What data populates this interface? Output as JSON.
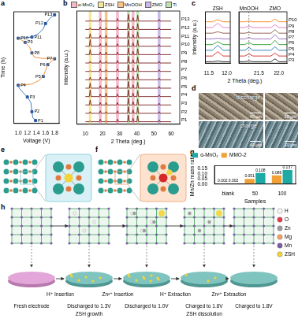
{
  "panel_labels": [
    "a",
    "b",
    "c",
    "d",
    "e",
    "f",
    "g",
    "h"
  ],
  "chart_data": [
    {
      "type": "line",
      "xlabel": "Voltage (V)",
      "ylabel": "Time (h)",
      "xlim": [
        0.9,
        1.9
      ],
      "xticks": [
        {
          "value": 1,
          "label": "1.0"
        },
        1.2,
        1.4,
        1.6,
        1.8
      ],
      "ylim": [
        -0.5,
        18.5
      ],
      "tick_labels": "x",
      "grid": false,
      "marker": "square",
      "series": [
        {
          "color": "#2e6fb7",
          "x": [
            1.38,
            1.32,
            1.3,
            1.28,
            1.2,
            1.1,
            1.02,
            1.0
          ],
          "values": [
            0,
            0.5,
            1.5,
            3,
            4,
            4.8,
            5.5,
            6
          ]
        },
        {
          "color": "#e8862a",
          "x": [
            1.0,
            1.3,
            1.45,
            1.55,
            1.6,
            1.65,
            1.75,
            1.8,
            1.5,
            1.35,
            1.3,
            1.25,
            1.15,
            1.05,
            1.0
          ],
          "values": [
            6,
            6.2,
            6.8,
            7.5,
            8.5,
            9.5,
            10.2,
            10.5,
            10.6,
            10.8,
            11.5,
            12.5,
            13.3,
            13.8,
            14
          ]
        },
        {
          "color": "#2e6fb7",
          "x": [
            1.0,
            1.3,
            1.45,
            1.55,
            1.6,
            1.7,
            1.8
          ],
          "values": [
            14,
            14.2,
            14.8,
            15.6,
            16.5,
            17.4,
            18
          ]
        }
      ],
      "points": {
        "color": "#1f4e9c",
        "labels": [
          "P1",
          "P2",
          "P3",
          "P4",
          "P5",
          "P6",
          "P7",
          "P8",
          "P9",
          "P10",
          "P11",
          "P12",
          "P13"
        ],
        "x": [
          1.38,
          1.3,
          1.2,
          1.0,
          1.55,
          1.65,
          1.8,
          1.3,
          1.15,
          1.0,
          1.3,
          1.6,
          1.8
        ],
        "y": [
          0,
          1.5,
          4,
          6,
          7.5,
          9.5,
          10.5,
          11.5,
          13.3,
          14,
          14.2,
          16.5,
          18
        ]
      }
    },
    {
      "type": "line",
      "xlabel": "2 Theta (deg.)",
      "ylabel": "Intensity (a.u.)",
      "xlim": [
        5,
        65
      ],
      "xticks": [
        10,
        20,
        30,
        40,
        50,
        60
      ],
      "ylim": [
        -3,
        132
      ],
      "tick_labels": "x",
      "grid": false,
      "phases": [
        {
          "name": "α-MnO₂",
          "color": "#f6b8c8"
        },
        {
          "name": "ZSH",
          "color": "#f5e79e"
        },
        {
          "name": "MnOOH",
          "color": "#f8c48a"
        },
        {
          "name": "ZMO",
          "color": "#c9b8e8"
        },
        {
          "name": "Ti",
          "color": "#bfe3b0"
        }
      ],
      "bands": [
        {
          "phase": "ZSH",
          "xmin": 12.0,
          "xmax": 13.6
        },
        {
          "phase": "α-MnO₂",
          "xmin": 17.9,
          "xmax": 19.5
        },
        {
          "phase": "MnOOH",
          "xmin": 21.3,
          "xmax": 22.9
        },
        {
          "phase": "α-MnO₂",
          "xmin": 27.9,
          "xmax": 29.5
        },
        {
          "phase": "Ti",
          "xmin": 34.3,
          "xmax": 35.9
        },
        {
          "phase": "α-MnO₂",
          "xmin": 37.0,
          "xmax": 38.6
        },
        {
          "phase": "Ti",
          "xmin": 39.7,
          "xmax": 41.3
        },
        {
          "phase": "ZMO",
          "xmin": 52.2,
          "xmax": 53.8
        }
      ],
      "x": [
        10,
        12.3,
        12.8,
        13.3,
        18.2,
        18.7,
        19.2,
        21.6,
        22.1,
        22.6,
        28.2,
        28.7,
        29.2,
        34.6,
        35.1,
        35.6,
        37.3,
        37.8,
        38.3,
        40,
        40.5,
        41,
        52.5,
        53,
        53.5,
        60
      ],
      "series": [
        {
          "name": "P1",
          "color": "#7b1f1f",
          "values": [
            0,
            0,
            1,
            0,
            0,
            3,
            0,
            0,
            1,
            0,
            0,
            3,
            0,
            0,
            8,
            0,
            0,
            4,
            0,
            0,
            7,
            0,
            0,
            2,
            0,
            0
          ]
        },
        {
          "name": "P2",
          "color": "#7b1f1f",
          "values": [
            10,
            10,
            12,
            10,
            10,
            13,
            10,
            10,
            12,
            10,
            10,
            13,
            10,
            10,
            18,
            10,
            10,
            14,
            10,
            10,
            17,
            10,
            10,
            12,
            10,
            10
          ]
        },
        {
          "name": "P3",
          "color": "#7b1f1f",
          "values": [
            20,
            20,
            26,
            20,
            20,
            23,
            20,
            20,
            23,
            20,
            20,
            23,
            20,
            20,
            28,
            20,
            20,
            24,
            20,
            20,
            27,
            20,
            20,
            22,
            20,
            20
          ]
        },
        {
          "name": "P4",
          "color": "#7b1f1f",
          "values": [
            30,
            30,
            38,
            30,
            30,
            33,
            30,
            30,
            34,
            30,
            30,
            33,
            30,
            30,
            38,
            30,
            30,
            34,
            30,
            30,
            37,
            30,
            30,
            32,
            30,
            30
          ]
        },
        {
          "name": "P5",
          "color": "#7b1f1f",
          "values": [
            40,
            40,
            46,
            40,
            40,
            43,
            40,
            40,
            44,
            40,
            40,
            43,
            40,
            40,
            48,
            40,
            40,
            44,
            40,
            40,
            47,
            40,
            40,
            42,
            40,
            40
          ]
        },
        {
          "name": "P6",
          "color": "#7b1f1f",
          "values": [
            50,
            50,
            53,
            50,
            50,
            53,
            50,
            50,
            53,
            50,
            50,
            53,
            50,
            50,
            58,
            50,
            50,
            54,
            50,
            50,
            57,
            50,
            50,
            52,
            50,
            50
          ]
        },
        {
          "name": "P7",
          "color": "#7b1f1f",
          "values": [
            60,
            60,
            61,
            60,
            60,
            63,
            60,
            60,
            62,
            60,
            60,
            63,
            60,
            60,
            68,
            60,
            60,
            64,
            60,
            60,
            67,
            60,
            60,
            62,
            60,
            60
          ]
        },
        {
          "name": "P8",
          "color": "#7b1f1f",
          "values": [
            70,
            70,
            72,
            70,
            70,
            73,
            70,
            70,
            72,
            70,
            70,
            73,
            70,
            70,
            78,
            70,
            70,
            74,
            70,
            70,
            77,
            70,
            70,
            72,
            70,
            70
          ]
        },
        {
          "name": "P9",
          "color": "#7b1f1f",
          "values": [
            80,
            80,
            86,
            80,
            80,
            83,
            80,
            80,
            83,
            80,
            80,
            83,
            80,
            80,
            88,
            80,
            80,
            84,
            80,
            80,
            87,
            80,
            80,
            82,
            80,
            80
          ]
        },
        {
          "name": "P10",
          "color": "#7b1f1f",
          "values": [
            90,
            90,
            98,
            90,
            90,
            93,
            90,
            90,
            94,
            90,
            90,
            93,
            90,
            90,
            98,
            90,
            90,
            94,
            90,
            90,
            97,
            90,
            90,
            92,
            90,
            90
          ]
        },
        {
          "name": "P11",
          "color": "#7b1f1f",
          "values": [
            100,
            100,
            105,
            100,
            100,
            103,
            100,
            100,
            103,
            100,
            100,
            103,
            100,
            100,
            108,
            100,
            100,
            104,
            100,
            100,
            107,
            100,
            100,
            102,
            100,
            100
          ]
        },
        {
          "name": "P12",
          "color": "#7b1f1f",
          "values": [
            110,
            110,
            112,
            110,
            110,
            113,
            110,
            110,
            112,
            110,
            110,
            113,
            110,
            110,
            118,
            110,
            110,
            114,
            110,
            110,
            117,
            110,
            110,
            112,
            110,
            110
          ]
        },
        {
          "name": "P13",
          "color": "#7b1f1f",
          "values": [
            120,
            120,
            121,
            120,
            120,
            123,
            120,
            120,
            121,
            120,
            120,
            123,
            120,
            120,
            128,
            120,
            120,
            124,
            120,
            120,
            127,
            120,
            120,
            122,
            120,
            120
          ]
        }
      ]
    },
    {
      "type": "line",
      "ylabel": "Intensity (a.u.)",
      "xlim": [
        11.4,
        12.1
      ],
      "xticks": [
        11.5,
        {
          "value": 12,
          "label": "12.0"
        }
      ],
      "ylim": [
        -1,
        35
      ],
      "tick_labels": "x",
      "grid": false,
      "annotations": [
        {
          "text": "ZSH",
          "x": 11.75
        }
      ],
      "x": [
        11.4,
        11.6,
        11.75,
        11.9,
        12.1
      ],
      "series": [
        {
          "color": "#1b1b1b",
          "values": [
            0,
            0,
            0.5,
            0,
            0
          ]
        },
        {
          "color": "#d62728",
          "values": [
            4,
            4,
            7,
            4,
            4
          ]
        },
        {
          "color": "#1f77b4",
          "values": [
            8,
            8,
            11.5,
            8,
            8
          ]
        },
        {
          "color": "#2ca02c",
          "values": [
            12,
            12,
            14,
            12,
            12
          ]
        },
        {
          "color": "#9467bd",
          "values": [
            16,
            16,
            16.5,
            16,
            16
          ]
        },
        {
          "color": "#8c564b",
          "values": [
            20,
            20,
            21,
            20,
            20
          ]
        },
        {
          "color": "#e377c2",
          "values": [
            24,
            24,
            27,
            24,
            24
          ]
        },
        {
          "color": "#ff7f0e",
          "values": [
            28,
            28,
            29.5,
            28,
            28
          ]
        }
      ]
    },
    {
      "type": "line",
      "xlabel": "2 Theta (deg.)",
      "xlim": [
        21.0,
        22.2
      ],
      "xticks": [
        21.5,
        {
          "value": 22,
          "label": "22.0"
        }
      ],
      "ylim": [
        -1,
        35
      ],
      "tick_labels": "x",
      "grid": false,
      "annotations": [
        {
          "text": "MnOOH",
          "x": 21.25
        },
        {
          "text": "ZMO",
          "x": 21.9
        }
      ],
      "vlines": [
        21.25
      ],
      "x": [
        21.0,
        21.15,
        21.25,
        21.35,
        21.6,
        21.8,
        21.9,
        22.0,
        22.2
      ],
      "series": [
        {
          "name": "P3",
          "color": "#1b1b1b",
          "values": [
            0,
            0,
            0.5,
            0,
            0,
            0,
            2,
            0,
            0
          ]
        },
        {
          "name": "P4",
          "color": "#d62728",
          "values": [
            4,
            4,
            5.5,
            4,
            4,
            4,
            6,
            4,
            4
          ]
        },
        {
          "name": "P5",
          "color": "#1f77b4",
          "values": [
            8,
            8,
            10,
            8,
            8,
            8,
            10.5,
            8,
            8
          ]
        },
        {
          "name": "P6",
          "color": "#2ca02c",
          "values": [
            12,
            12,
            13.5,
            12,
            12,
            12,
            15,
            12,
            12
          ]
        },
        {
          "name": "P7",
          "color": "#9467bd",
          "values": [
            16,
            16,
            17,
            16,
            16,
            16,
            19,
            16,
            16
          ]
        },
        {
          "name": "P8",
          "color": "#8c564b",
          "values": [
            20,
            20,
            20.5,
            20,
            20,
            20,
            22.5,
            20,
            20
          ]
        },
        {
          "name": "P9",
          "color": "#e377c2",
          "values": [
            24,
            24,
            25,
            24,
            24,
            24,
            26,
            24,
            24
          ]
        },
        {
          "name": "P10",
          "color": "#ff7f0e",
          "values": [
            28,
            28,
            28.5,
            28,
            28,
            28,
            30,
            28,
            28
          ]
        }
      ]
    },
    {
      "type": "bar",
      "xlabel": "Samples",
      "ylabel": "Mn/Zn mass ratio",
      "categories": [
        "blank",
        "50",
        "100"
      ],
      "ylim": [
        0,
        0.18
      ],
      "yticks": [
        {
          "value": 0,
          "label": "0.00"
        },
        0.05,
        {
          "value": 0.1,
          "label": "0.10"
        },
        0.15
      ],
      "legend": "top-left",
      "data_labels": true,
      "grid": false,
      "series": [
        {
          "name": "MMO-2",
          "color": "#f0a035",
          "values": [
            0.002,
            0.051,
            0.086
          ]
        },
        {
          "name": "α-MnO₂",
          "color": "#1fa9a4",
          "values": [
            0.002,
            0.108,
            0.137
          ]
        }
      ]
    }
  ],
  "panel_d": {
    "rows": [
      {
        "label": "discharge",
        "scale_bars": [
          "40 μm",
          "10 μm"
        ]
      },
      {
        "label": "charge",
        "scale_bars": [
          "40 μm",
          "10 μm"
        ]
      }
    ]
  },
  "panel_h": {
    "stages": [
      {
        "label": "Fresh electrode"
      },
      {
        "label": "Discharged to 1.3V",
        "note": "ZSH growth"
      },
      {
        "label": "Discharged to 1.0V"
      },
      {
        "label": "Charged to 1.6V",
        "note": "ZSH dissolution"
      },
      {
        "label": "Charged to 1.8V"
      }
    ],
    "transitions": [
      "H⁺ Insertion",
      "Zn²⁺ Insertion",
      "H⁺ Extraction",
      "Zn²⁺ Extraction"
    ],
    "legend": [
      {
        "name": "H",
        "color": "#f5f5f5"
      },
      {
        "name": "O",
        "color": "#e63946"
      },
      {
        "name": "Zn",
        "color": "#9e9e9e"
      },
      {
        "name": "Mg",
        "color": "#f4a261"
      },
      {
        "name": "Mn",
        "color": "#7b5ea7"
      },
      {
        "name": "ZSH",
        "color": "#f2d43a"
      }
    ]
  }
}
